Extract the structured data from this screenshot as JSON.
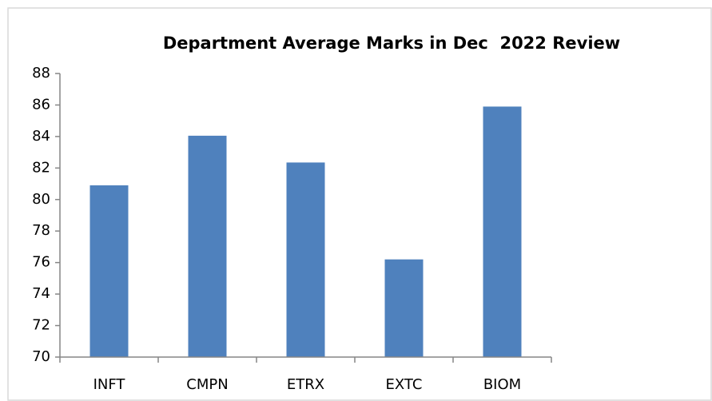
{
  "chart_data": {
    "type": "bar",
    "title": "Department Average Marks in Dec  2022 Review",
    "categories": [
      "INFT",
      "CMPN",
      "ETRX",
      "EXTC",
      "BIOM"
    ],
    "values": [
      80.9,
      84.05,
      82.35,
      76.2,
      85.9
    ],
    "color": "#4f81bd",
    "ylim": [
      70,
      88
    ],
    "yticks": [
      70,
      72,
      74,
      76,
      78,
      80,
      82,
      84,
      86,
      88
    ],
    "grid": false
  }
}
